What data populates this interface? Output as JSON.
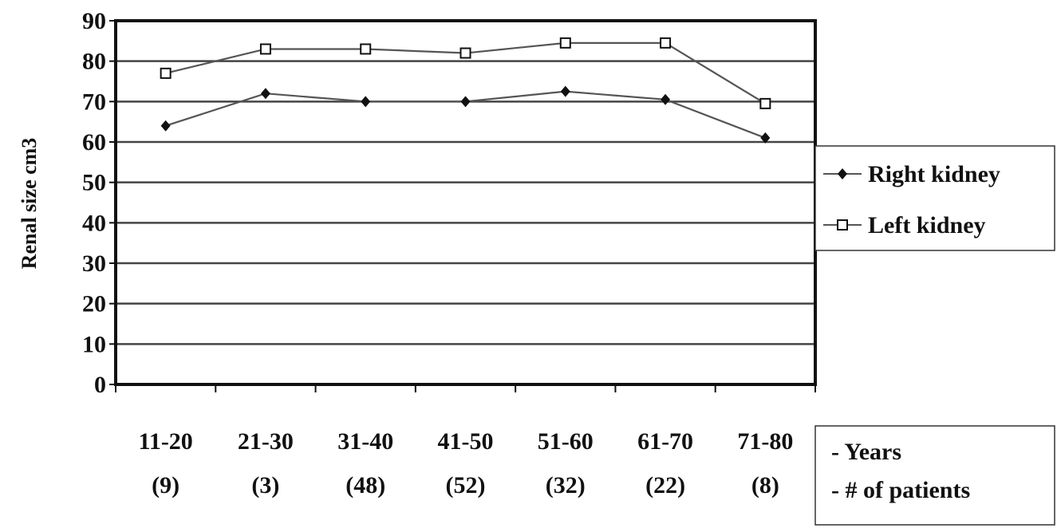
{
  "chart_data": {
    "type": "line",
    "title": "",
    "ylabel": "Renal size cm3",
    "xlabel": "",
    "ylim": [
      0,
      90
    ],
    "yticks": [
      "0",
      "10",
      "20",
      "30",
      "40",
      "50",
      "60",
      "70",
      "80",
      "90"
    ],
    "categories": [
      "11-20",
      "21-30",
      "31-40",
      "41-50",
      "51-60",
      "61-70",
      "71-80"
    ],
    "patients": [
      "(9)",
      "(3)",
      "(48)",
      "(52)",
      "(32)",
      "(22)",
      "(8)"
    ],
    "grid": true,
    "legend_position": "right",
    "series": [
      {
        "name": "Right kidney",
        "marker": "diamond-filled",
        "values": [
          64,
          72,
          70,
          70,
          72.5,
          70.5,
          61
        ]
      },
      {
        "name": "Left kidney",
        "marker": "square-open",
        "values": [
          77,
          83,
          83,
          82,
          84.5,
          84.5,
          69.5
        ]
      }
    ],
    "x_key": {
      "lines": [
        "- Years",
        "- # of patients"
      ]
    },
    "colors": {
      "line": "#555555",
      "grid": "#444444",
      "frame": "#111111",
      "text": "#111111",
      "background": "#ffffff"
    }
  }
}
